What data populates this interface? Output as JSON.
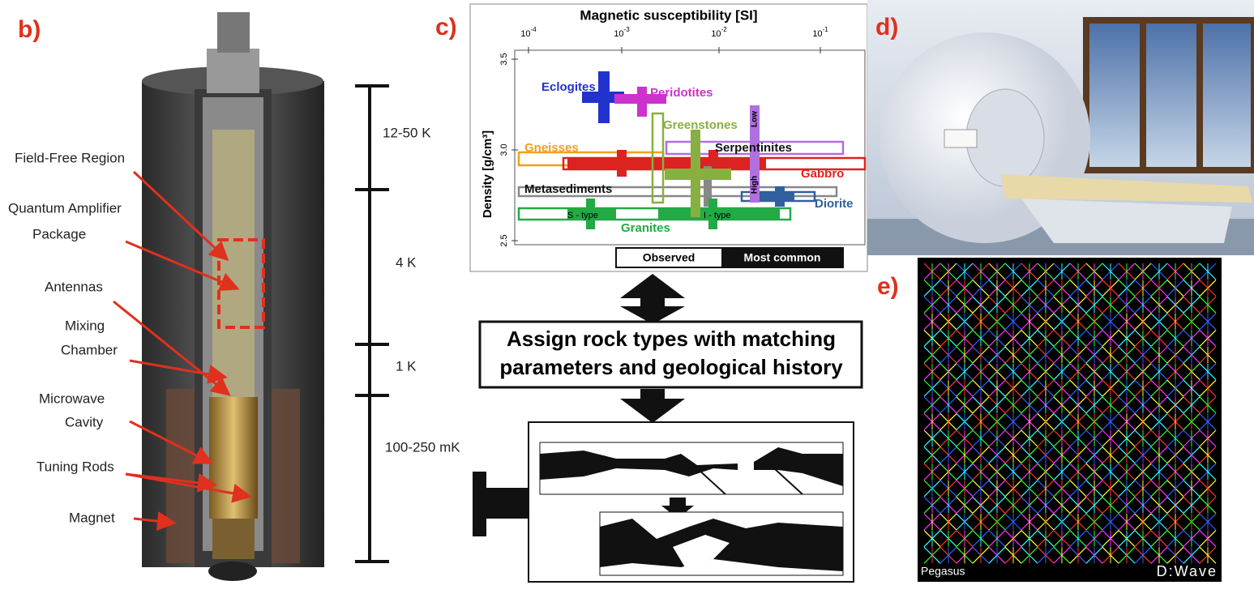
{
  "panels": {
    "b": {
      "label": "b)",
      "annotations": [
        "Field-Free Region",
        "Quantum Amplifier",
        "Package",
        "Antennas",
        "Mixing",
        "Chamber",
        "Microwave",
        "Cavity",
        "Tuning Rods",
        "Magnet"
      ],
      "temperatures": [
        "12-50 K",
        "4 K",
        "1 K",
        "100-250 mK"
      ]
    },
    "c": {
      "label": "c)",
      "x_axis_title": "Magnetic susceptibility [SI]",
      "x_ticks": [
        {
          "base": "10",
          "exp": "-4"
        },
        {
          "base": "10",
          "exp": "-3"
        },
        {
          "base": "10",
          "exp": "-2"
        },
        {
          "base": "10",
          "exp": "-1"
        }
      ],
      "y_axis_title": "Density [g/cm³]",
      "y_ticks": [
        "3.5",
        "3.0",
        "2.5"
      ],
      "rocks": [
        {
          "name": "Eclogites",
          "color": "#2233cc"
        },
        {
          "name": "Peridotites",
          "color": "#cc33cc"
        },
        {
          "name": "Greenstones",
          "color": "#88b040"
        },
        {
          "name": "Gneisses",
          "color": "#f0a020"
        },
        {
          "name": "Serpentinites",
          "color": "#b070e0"
        },
        {
          "name": "Gabbro",
          "color": "#dd2222"
        },
        {
          "name": "Metasediments",
          "color": "#888888"
        },
        {
          "name": "Diorite",
          "color": "#3060a0"
        },
        {
          "name": "Granites",
          "color": "#22aa44"
        }
      ],
      "sublabels": [
        "Low",
        "High",
        "S - type",
        "I - type"
      ],
      "legend": [
        "Observed",
        "Most common"
      ],
      "statement": [
        "Assign rock types with matching",
        "parameters and geological history"
      ]
    },
    "d": {
      "label": "d)"
    },
    "e": {
      "label": "e)",
      "caption": "Pegasus",
      "logo": "D:Wave"
    }
  }
}
